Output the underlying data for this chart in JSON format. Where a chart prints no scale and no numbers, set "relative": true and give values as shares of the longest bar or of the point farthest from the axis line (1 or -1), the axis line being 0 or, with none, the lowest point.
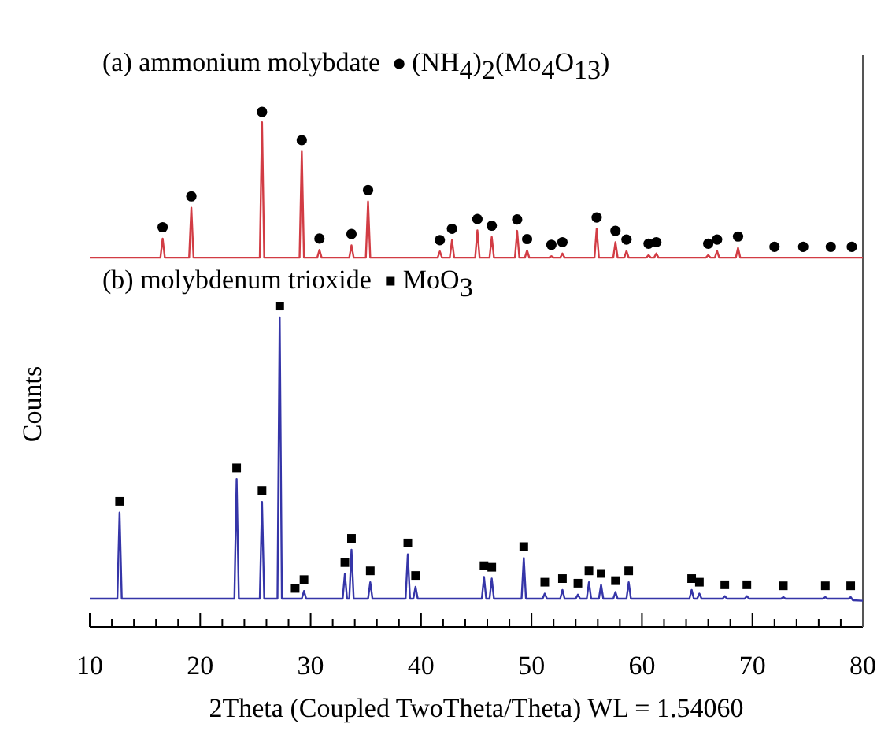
{
  "chart_data": {
    "type": "line",
    "relative": true,
    "xlabel": "2Theta (Coupled TwoTheta/Theta) WL = 1.54060",
    "ylabel": "Counts",
    "annotations": [
      "(a) ammonium molybdate",
      "(b) molybdenum trioxide"
    ],
    "xlim": [
      10,
      80
    ],
    "xticks": [
      10,
      {
        "value": 12,
        "label": null
      },
      {
        "value": 14,
        "label": null
      },
      {
        "value": 16,
        "label": null
      },
      {
        "value": 18,
        "label": null
      },
      20,
      {
        "value": 22,
        "label": null
      },
      {
        "value": 24,
        "label": null
      },
      {
        "value": 26,
        "label": null
      },
      {
        "value": 28,
        "label": null
      },
      30,
      {
        "value": 32,
        "label": null
      },
      {
        "value": 34,
        "label": null
      },
      {
        "value": 36,
        "label": null
      },
      {
        "value": 38,
        "label": null
      },
      40,
      {
        "value": 42,
        "label": null
      },
      {
        "value": 44,
        "label": null
      },
      {
        "value": 46,
        "label": null
      },
      {
        "value": 48,
        "label": null
      },
      50,
      {
        "value": 52,
        "label": null
      },
      {
        "value": 54,
        "label": null
      },
      {
        "value": 56,
        "label": null
      },
      {
        "value": 58,
        "label": null
      },
      60,
      {
        "value": 62,
        "label": null
      },
      {
        "value": 64,
        "label": null
      },
      {
        "value": 66,
        "label": null
      },
      {
        "value": 68,
        "label": null
      },
      70,
      {
        "value": 72,
        "label": null
      },
      {
        "value": 74,
        "label": null
      },
      {
        "value": 76,
        "label": null
      },
      {
        "value": 78,
        "label": null
      },
      80
    ],
    "tick_labels": "x",
    "grid": false,
    "legend": "top left",
    "series": [
      {
        "type": "line",
        "color": "#d23c44",
        "x": [
          10,
          16.4,
          16.6,
          16.8,
          19.0,
          19.2,
          19.4,
          25.4,
          25.6,
          25.8,
          29.0,
          29.2,
          29.4,
          30.6,
          30.8,
          31.0,
          33.5,
          33.7,
          33.9,
          35.0,
          35.2,
          35.4,
          41.5,
          41.7,
          41.9,
          42.6,
          42.8,
          43.0,
          44.9,
          45.1,
          45.3,
          46.2,
          46.4,
          46.6,
          48.5,
          48.7,
          48.9,
          49.4,
          49.6,
          49.8,
          51.6,
          51.8,
          52.0,
          52.6,
          52.8,
          53.0,
          55.7,
          55.9,
          56.1,
          57.4,
          57.6,
          57.8,
          58.4,
          58.6,
          58.8,
          60.4,
          60.6,
          60.8,
          61.1,
          61.3,
          61.5,
          65.8,
          66.0,
          66.2,
          66.6,
          66.8,
          67.0,
          68.5,
          68.7,
          68.9,
          80
        ],
        "values": [
          0.717,
          0.717,
          0.754,
          0.717,
          0.717,
          0.814,
          0.717,
          0.717,
          0.98,
          0.717,
          0.717,
          0.923,
          0.717,
          0.717,
          0.732,
          0.717,
          0.717,
          0.741,
          0.717,
          0.717,
          0.826,
          0.717,
          0.717,
          0.729,
          0.717,
          0.717,
          0.751,
          0.717,
          0.717,
          0.77,
          0.717,
          0.717,
          0.757,
          0.717,
          0.717,
          0.769,
          0.717,
          0.717,
          0.731,
          0.717,
          0.717,
          0.72,
          0.717,
          0.717,
          0.725,
          0.717,
          0.717,
          0.773,
          0.717,
          0.717,
          0.747,
          0.717,
          0.717,
          0.73,
          0.717,
          0.717,
          0.722,
          0.717,
          0.717,
          0.725,
          0.717,
          0.717,
          0.722,
          0.717,
          0.717,
          0.73,
          0.717,
          0.717,
          0.736,
          0.717,
          0.717
        ]
      },
      {
        "type": "line",
        "color": "#3535a8",
        "x": [
          10,
          12.5,
          12.7,
          12.9,
          23.1,
          23.3,
          23.5,
          25.4,
          25.6,
          25.8,
          27.0,
          27.2,
          27.4,
          29.2,
          29.4,
          29.6,
          32.9,
          33.1,
          33.3,
          33.5,
          33.7,
          33.9,
          35.2,
          35.4,
          35.6,
          38.6,
          38.8,
          39.0,
          39.3,
          39.5,
          39.7,
          45.5,
          45.7,
          45.9,
          46.2,
          46.4,
          46.6,
          49.1,
          49.3,
          49.5,
          51.0,
          51.2,
          51.4,
          52.6,
          52.8,
          53.0,
          54.0,
          54.2,
          54.4,
          55.0,
          55.2,
          55.4,
          56.1,
          56.3,
          56.5,
          57.4,
          57.6,
          57.8,
          58.6,
          58.8,
          59.0,
          64.3,
          64.5,
          64.7,
          65.0,
          65.2,
          65.4,
          67.3,
          67.5,
          67.7,
          69.3,
          69.5,
          69.7,
          72.6,
          72.8,
          73.0,
          76.4,
          76.6,
          76.8,
          78.7,
          78.9,
          79.1,
          80
        ],
        "values": [
          0.055,
          0.055,
          0.222,
          0.055,
          0.055,
          0.287,
          0.055,
          0.055,
          0.243,
          0.055,
          0.055,
          0.601,
          0.055,
          0.055,
          0.07,
          0.055,
          0.055,
          0.103,
          0.055,
          0.055,
          0.15,
          0.055,
          0.055,
          0.087,
          0.055,
          0.055,
          0.141,
          0.055,
          0.055,
          0.078,
          0.055,
          0.055,
          0.097,
          0.055,
          0.055,
          0.094,
          0.055,
          0.055,
          0.134,
          0.055,
          0.055,
          0.065,
          0.055,
          0.055,
          0.072,
          0.055,
          0.055,
          0.063,
          0.055,
          0.055,
          0.087,
          0.055,
          0.055,
          0.082,
          0.055,
          0.055,
          0.068,
          0.055,
          0.055,
          0.087,
          0.055,
          0.055,
          0.072,
          0.055,
          0.055,
          0.065,
          0.055,
          0.055,
          0.06,
          0.055,
          0.055,
          0.06,
          0.055,
          0.055,
          0.058,
          0.055,
          0.055,
          0.058,
          0.055,
          0.055,
          0.058,
          0.052,
          0.051
        ]
      },
      {
        "type": "scatter",
        "name": "(NH$_{4}$)$_{2}$(Mo$_{4}$O$_{13}$)",
        "color": "#000000",
        "marker": "circle",
        "x": [
          16.6,
          19.2,
          25.6,
          29.2,
          30.8,
          33.7,
          35.2,
          41.7,
          42.8,
          45.1,
          46.4,
          48.7,
          49.6,
          51.8,
          52.8,
          55.9,
          57.6,
          58.6,
          60.6,
          61.3,
          66.0,
          66.8,
          68.7,
          72.0,
          74.6,
          77.1,
          79.0
        ],
        "values": [
          0.776,
          0.836,
          1.0,
          0.945,
          0.754,
          0.763,
          0.848,
          0.751,
          0.773,
          0.792,
          0.779,
          0.791,
          0.753,
          0.742,
          0.747,
          0.795,
          0.769,
          0.752,
          0.744,
          0.747,
          0.744,
          0.752,
          0.758,
          0.738,
          0.738,
          0.738,
          0.738
        ]
      },
      {
        "type": "scatter",
        "name": "MoO$_{3}$",
        "color": "#000000",
        "marker": "square",
        "x": [
          12.7,
          23.3,
          25.6,
          27.2,
          28.6,
          29.4,
          33.1,
          33.7,
          35.4,
          38.8,
          39.5,
          45.7,
          46.4,
          49.3,
          51.2,
          52.8,
          54.2,
          55.2,
          56.3,
          57.6,
          58.8,
          64.5,
          65.2,
          67.5,
          69.5,
          72.8,
          76.6,
          78.9
        ],
        "values": [
          0.244,
          0.309,
          0.265,
          0.623,
          0.075,
          0.092,
          0.125,
          0.172,
          0.109,
          0.163,
          0.1,
          0.119,
          0.116,
          0.156,
          0.087,
          0.094,
          0.085,
          0.109,
          0.104,
          0.09,
          0.109,
          0.094,
          0.087,
          0.082,
          0.082,
          0.08,
          0.08,
          0.08
        ]
      }
    ]
  }
}
